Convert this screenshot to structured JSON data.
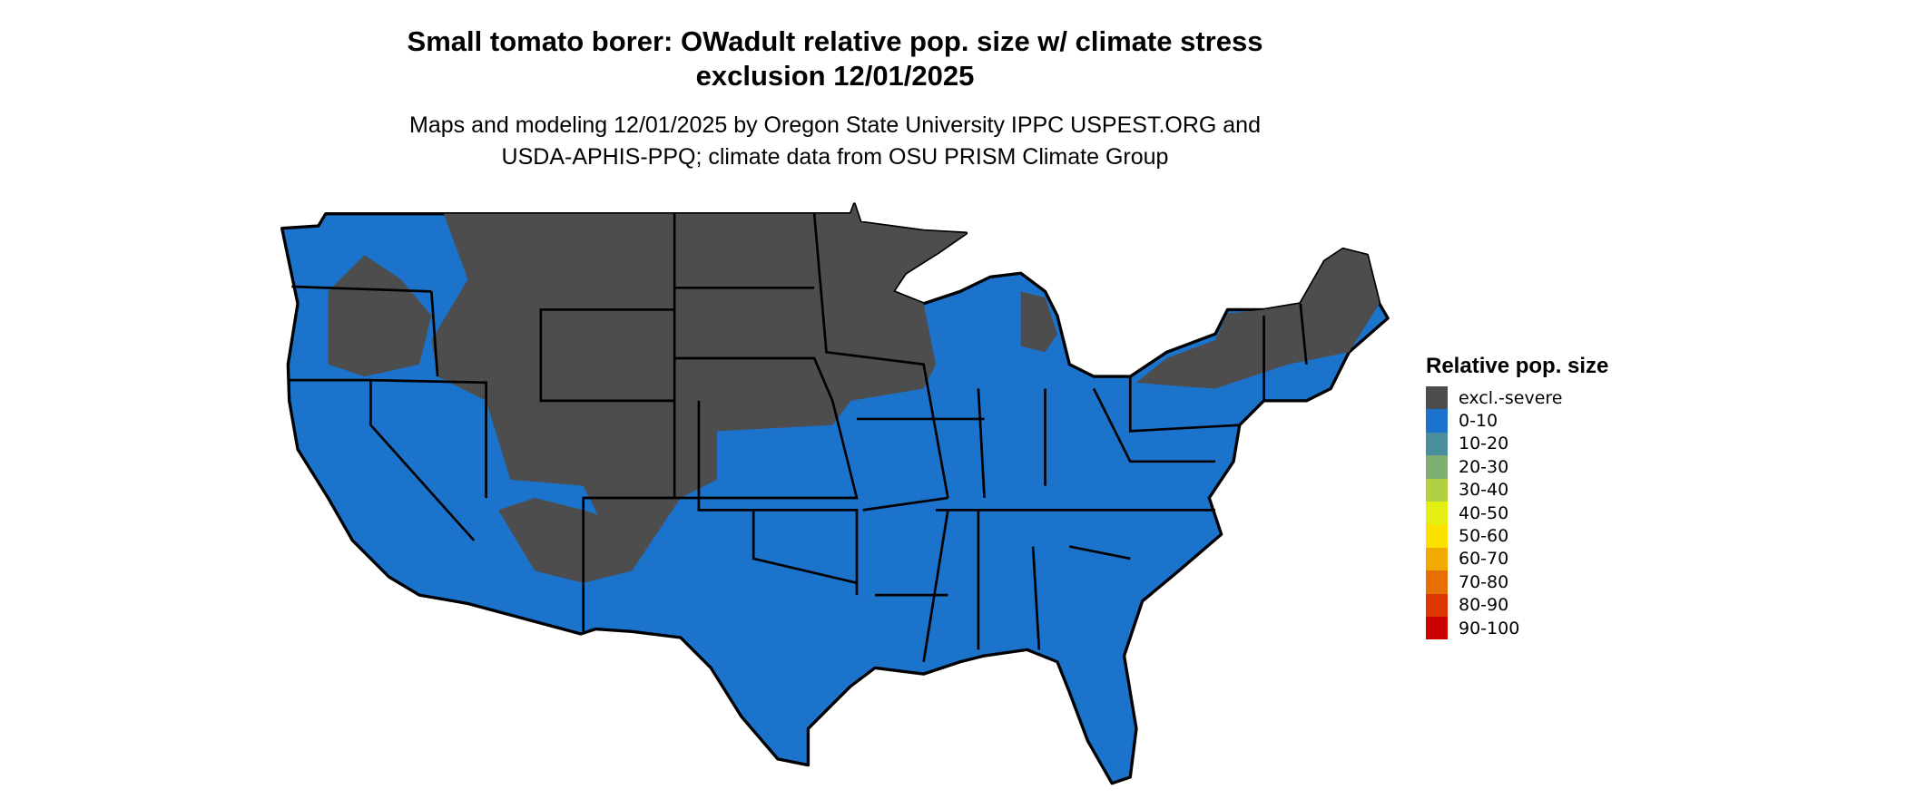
{
  "title_line1": "Small tomato borer: OWadult relative pop. size w/ climate stress",
  "title_line2": "exclusion 12/01/2025",
  "subtitle_line1": "Maps and modeling 12/01/2025 by Oregon State University IPPC USPEST.ORG and",
  "subtitle_line2": "USDA-APHIS-PPQ; climate data from OSU PRISM Climate Group",
  "chart_data": {
    "type": "heatmap",
    "map_region": "Contiguous United States",
    "legend": {
      "title": "Relative pop. size",
      "placement": "right",
      "items": [
        {
          "label": "excl.-severe",
          "color": "#4d4d4d"
        },
        {
          "label": "0-10",
          "color": "#1b73cc"
        },
        {
          "label": "10-20",
          "color": "#4a8f9c"
        },
        {
          "label": "20-30",
          "color": "#7daf72"
        },
        {
          "label": "30-40",
          "color": "#b1d042"
        },
        {
          "label": "40-50",
          "color": "#e5f012"
        },
        {
          "label": "50-60",
          "color": "#fae100"
        },
        {
          "label": "60-70",
          "color": "#f0aa00"
        },
        {
          "label": "70-80",
          "color": "#e57000"
        },
        {
          "label": "80-90",
          "color": "#dc3700"
        },
        {
          "label": "90-100",
          "color": "#cc0000"
        }
      ]
    },
    "observed_classes": [
      "excl.-severe",
      "0-10"
    ]
  }
}
